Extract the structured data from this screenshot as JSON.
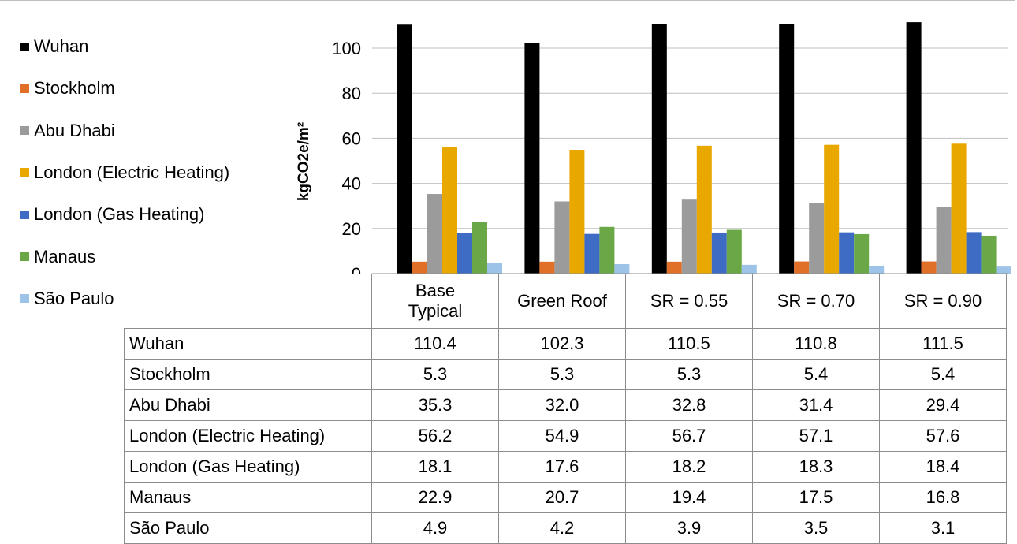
{
  "chart_data": {
    "type": "bar",
    "ylabel": "kgCO2e/m²",
    "ylim": [
      0,
      110
    ],
    "yticks": [
      "0",
      "20",
      "40",
      "60",
      "80",
      "100"
    ],
    "categories": [
      "Base\nTypical",
      "Green Roof",
      "SR = 0.55",
      "SR = 0.70",
      "SR = 0.90"
    ],
    "legend_position": "left",
    "grid": true,
    "series": [
      {
        "name": "Wuhan",
        "color": "#000000",
        "values": [
          110.4,
          102.3,
          110.5,
          110.8,
          111.5
        ]
      },
      {
        "name": "Stockholm",
        "color": "#E07028",
        "values": [
          5.3,
          5.3,
          5.3,
          5.4,
          5.4
        ]
      },
      {
        "name": "Abu Dhabi",
        "color": "#9B9B9B",
        "values": [
          35.3,
          32.0,
          32.8,
          31.4,
          29.4
        ]
      },
      {
        "name": "London (Electric Heating)",
        "color": "#E8A800",
        "values": [
          56.2,
          54.9,
          56.7,
          57.1,
          57.6
        ]
      },
      {
        "name": "London (Gas Heating)",
        "color": "#3E6CC4",
        "values": [
          18.1,
          17.6,
          18.2,
          18.3,
          18.4
        ]
      },
      {
        "name": "Manaus",
        "color": "#6AA746",
        "values": [
          22.9,
          20.7,
          19.4,
          17.5,
          16.8
        ]
      },
      {
        "name": "São Paulo",
        "color": "#9DC3E8",
        "values": [
          4.9,
          4.2,
          3.9,
          3.5,
          3.1
        ]
      }
    ],
    "table": {
      "rows": [
        {
          "label": "Wuhan",
          "cells": [
            "110.4",
            "102.3",
            "110.5",
            "110.8",
            "111.5"
          ]
        },
        {
          "label": "Stockholm",
          "cells": [
            "5.3",
            "5.3",
            "5.3",
            "5.4",
            "5.4"
          ]
        },
        {
          "label": "Abu Dhabi",
          "cells": [
            "35.3",
            "32.0",
            "32.8",
            "31.4",
            "29.4"
          ]
        },
        {
          "label": "London (Electric Heating)",
          "cells": [
            "56.2",
            "54.9",
            "56.7",
            "57.1",
            "57.6"
          ]
        },
        {
          "label": "London (Gas Heating)",
          "cells": [
            "18.1",
            "17.6",
            "18.2",
            "18.3",
            "18.4"
          ]
        },
        {
          "label": "Manaus",
          "cells": [
            "22.9",
            "20.7",
            "19.4",
            "17.5",
            "16.8"
          ]
        },
        {
          "label": "São Paulo",
          "cells": [
            "4.9",
            "4.2",
            "3.9",
            "3.5",
            "3.1"
          ]
        }
      ]
    }
  }
}
